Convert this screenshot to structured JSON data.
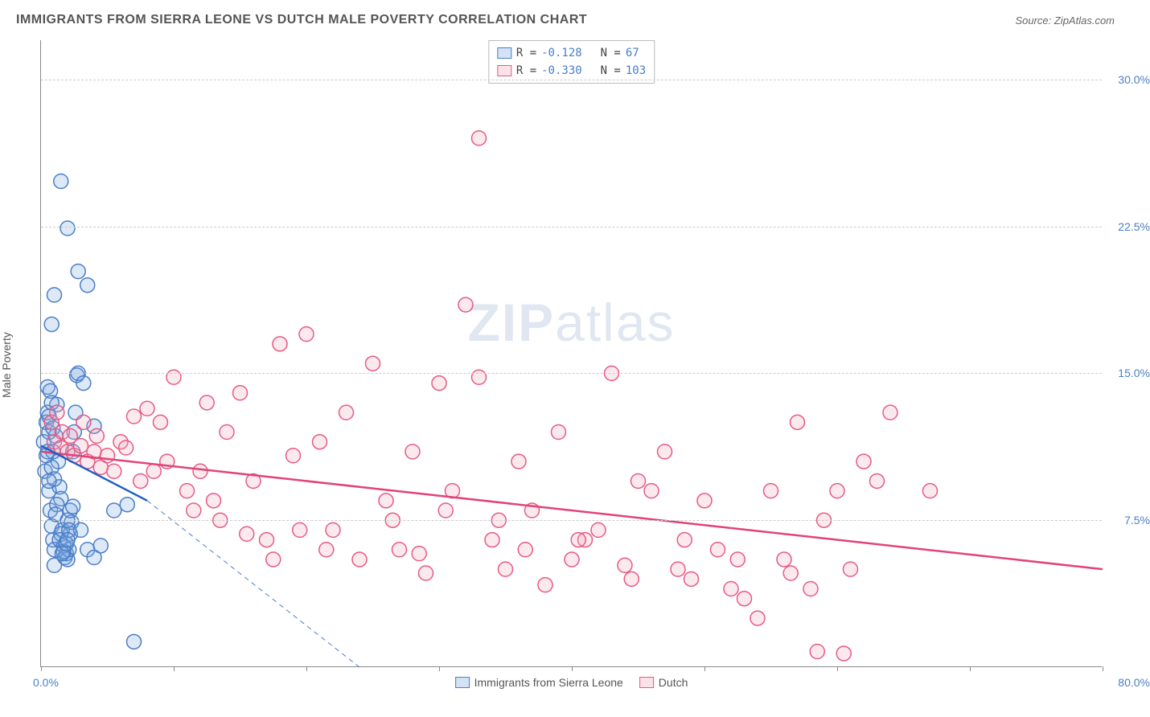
{
  "title": "IMMIGRANTS FROM SIERRA LEONE VS DUTCH MALE POVERTY CORRELATION CHART",
  "source": "Source: ZipAtlas.com",
  "ylabel": "Male Poverty",
  "watermark_a": "ZIP",
  "watermark_b": "atlas",
  "chart": {
    "type": "scatter",
    "xlim": [
      0,
      80
    ],
    "ylim": [
      0,
      32
    ],
    "xtick_step": 10,
    "yticks": [
      7.5,
      15.0,
      22.5,
      30.0
    ],
    "ytick_labels": [
      "7.5%",
      "15.0%",
      "22.5%",
      "30.0%"
    ],
    "xlabel_min": "0.0%",
    "xlabel_max": "80.0%",
    "background_color": "#ffffff",
    "grid_color": "#cccccc",
    "marker_radius": 9,
    "marker_stroke_width": 1.5,
    "fill_opacity": 0.25,
    "series": [
      {
        "name": "Immigrants from Sierra Leone",
        "color": "#7aa8e0",
        "stroke": "#4a7ec7",
        "trend_color": "#1f5fc4",
        "R": "-0.128",
        "N": "67",
        "trend": {
          "x1": 0,
          "y1": 11.3,
          "x2": 8,
          "y2": 8.5,
          "dash_to_x": 24,
          "dash_to_y": 0
        },
        "points": [
          [
            0.2,
            11.5
          ],
          [
            0.3,
            10.0
          ],
          [
            0.4,
            12.5
          ],
          [
            0.5,
            14.3
          ],
          [
            0.6,
            9.0
          ],
          [
            0.7,
            8.0
          ],
          [
            0.8,
            7.2
          ],
          [
            0.9,
            6.5
          ],
          [
            1.0,
            6.0
          ],
          [
            1.1,
            11.8
          ],
          [
            1.2,
            13.4
          ],
          [
            1.3,
            10.5
          ],
          [
            1.4,
            9.2
          ],
          [
            1.5,
            8.6
          ],
          [
            1.6,
            7.0
          ],
          [
            1.7,
            6.2
          ],
          [
            1.8,
            5.6
          ],
          [
            1.9,
            5.8
          ],
          [
            2.0,
            5.5
          ],
          [
            2.1,
            6.0
          ],
          [
            2.2,
            6.8
          ],
          [
            2.3,
            7.4
          ],
          [
            2.4,
            11.0
          ],
          [
            2.5,
            12.0
          ],
          [
            2.6,
            13.0
          ],
          [
            2.7,
            14.9
          ],
          [
            2.8,
            15.0
          ],
          [
            0.5,
            13.0
          ],
          [
            0.6,
            12.0
          ],
          [
            0.8,
            10.2
          ],
          [
            1.0,
            9.6
          ],
          [
            1.2,
            8.3
          ],
          [
            1.5,
            6.8
          ],
          [
            1.7,
            5.9
          ],
          [
            2.0,
            7.5
          ],
          [
            2.2,
            8.0
          ],
          [
            0.4,
            10.8
          ],
          [
            0.6,
            9.5
          ],
          [
            0.9,
            11.0
          ],
          [
            1.1,
            7.8
          ],
          [
            1.4,
            6.5
          ],
          [
            1.6,
            5.8
          ],
          [
            1.9,
            6.3
          ],
          [
            2.1,
            7.0
          ],
          [
            2.4,
            8.2
          ],
          [
            1.5,
            24.8
          ],
          [
            2.0,
            22.4
          ],
          [
            2.8,
            20.2
          ],
          [
            3.5,
            19.5
          ],
          [
            1.0,
            19.0
          ],
          [
            0.8,
            17.5
          ],
          [
            3.2,
            14.5
          ],
          [
            4.0,
            12.3
          ],
          [
            5.5,
            8.0
          ],
          [
            6.5,
            8.3
          ],
          [
            3.0,
            7.0
          ],
          [
            3.5,
            6.0
          ],
          [
            4.0,
            5.6
          ],
          [
            4.5,
            6.2
          ],
          [
            2.0,
            6.5
          ],
          [
            1.0,
            5.2
          ],
          [
            0.5,
            11.0
          ],
          [
            0.6,
            12.8
          ],
          [
            0.7,
            14.1
          ],
          [
            0.8,
            13.5
          ],
          [
            0.9,
            12.2
          ],
          [
            7.0,
            1.3
          ]
        ]
      },
      {
        "name": "Dutch",
        "color": "#f2a6ba",
        "stroke": "#e65a84",
        "trend_color": "#e14378",
        "R": "-0.330",
        "N": "103",
        "trend": {
          "x1": 0,
          "y1": 11.0,
          "x2": 80,
          "y2": 5.0
        },
        "points": [
          [
            1,
            11.5
          ],
          [
            1.5,
            11.2
          ],
          [
            2,
            11.0
          ],
          [
            2.5,
            10.8
          ],
          [
            3,
            11.3
          ],
          [
            3.5,
            10.5
          ],
          [
            4,
            11.0
          ],
          [
            4.5,
            10.2
          ],
          [
            5,
            10.8
          ],
          [
            5.5,
            10.0
          ],
          [
            6,
            11.5
          ],
          [
            6.4,
            11.2
          ],
          [
            7,
            12.8
          ],
          [
            7.5,
            9.5
          ],
          [
            8,
            13.2
          ],
          [
            8.5,
            10.0
          ],
          [
            9,
            12.5
          ],
          [
            9.5,
            10.5
          ],
          [
            10,
            14.8
          ],
          [
            11,
            9.0
          ],
          [
            12,
            10.0
          ],
          [
            12.5,
            13.5
          ],
          [
            13,
            8.5
          ],
          [
            14,
            12.0
          ],
          [
            15,
            14.0
          ],
          [
            16,
            9.5
          ],
          [
            17,
            6.5
          ],
          [
            18,
            16.5
          ],
          [
            19,
            10.8
          ],
          [
            20,
            17.0
          ],
          [
            21,
            11.5
          ],
          [
            22,
            7.0
          ],
          [
            23,
            13.0
          ],
          [
            24,
            5.5
          ],
          [
            25,
            15.5
          ],
          [
            26,
            8.5
          ],
          [
            27,
            6.0
          ],
          [
            28,
            11.0
          ],
          [
            29,
            4.8
          ],
          [
            30,
            14.5
          ],
          [
            31,
            9.0
          ],
          [
            32,
            18.5
          ],
          [
            33,
            14.8
          ],
          [
            33,
            27.0
          ],
          [
            34,
            6.5
          ],
          [
            35,
            5.0
          ],
          [
            36,
            10.5
          ],
          [
            37,
            8.0
          ],
          [
            38,
            4.2
          ],
          [
            39,
            12.0
          ],
          [
            40,
            5.5
          ],
          [
            41,
            6.5
          ],
          [
            42,
            7.0
          ],
          [
            43,
            15.0
          ],
          [
            44,
            5.2
          ],
          [
            45,
            9.5
          ],
          [
            46,
            9.0
          ],
          [
            47,
            11.0
          ],
          [
            48,
            5.0
          ],
          [
            49,
            4.5
          ],
          [
            50,
            8.5
          ],
          [
            51,
            6.0
          ],
          [
            52,
            4.0
          ],
          [
            53,
            3.5
          ],
          [
            54,
            2.5
          ],
          [
            55,
            9.0
          ],
          [
            56,
            5.5
          ],
          [
            57,
            12.5
          ],
          [
            58,
            4.0
          ],
          [
            59,
            7.5
          ],
          [
            60,
            9.0
          ],
          [
            61,
            5.0
          ],
          [
            62,
            10.5
          ],
          [
            0.8,
            12.5
          ],
          [
            1.2,
            13.0
          ],
          [
            1.6,
            12.0
          ],
          [
            2.2,
            11.8
          ],
          [
            3.2,
            12.5
          ],
          [
            4.2,
            11.8
          ],
          [
            11.5,
            8.0
          ],
          [
            13.5,
            7.5
          ],
          [
            15.5,
            6.8
          ],
          [
            17.5,
            5.5
          ],
          [
            19.5,
            7.0
          ],
          [
            21.5,
            6.0
          ],
          [
            26.5,
            7.5
          ],
          [
            28.5,
            5.8
          ],
          [
            30.5,
            8.0
          ],
          [
            34.5,
            7.5
          ],
          [
            36.5,
            6.0
          ],
          [
            40.5,
            6.5
          ],
          [
            44.5,
            4.5
          ],
          [
            48.5,
            6.5
          ],
          [
            52.5,
            5.5
          ],
          [
            56.5,
            4.8
          ],
          [
            58.5,
            0.8
          ],
          [
            60.5,
            0.7
          ],
          [
            63,
            9.5
          ],
          [
            64,
            13.0
          ],
          [
            67,
            9.0
          ]
        ]
      }
    ]
  },
  "legend": {
    "series1_label": "Immigrants from Sierra Leone",
    "series2_label": "Dutch"
  },
  "colors": {
    "axis": "#888888",
    "text": "#555555",
    "link_blue": "#4a7ec7"
  }
}
